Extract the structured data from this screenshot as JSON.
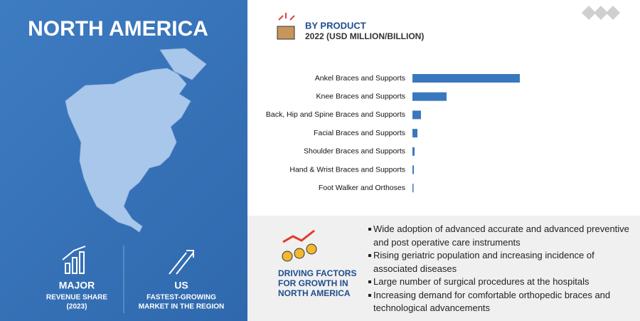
{
  "region": "NORTH AMERICA",
  "chart_data": {
    "type": "bar",
    "orientation": "horizontal",
    "title": "BY PRODUCT",
    "subtitle": "2022 (USD MILLION/BILLION)",
    "categories": [
      "Ankel Braces and Supports",
      "Knee Braces and Supports",
      "Back, Hip and Spine Braces and Supports",
      "Facial Braces and Supports",
      "Shoulder Braces and Supports",
      "Hand & Wrist Braces and Supports",
      "Foot Walker and Orthoses"
    ],
    "values": [
      151,
      48,
      12,
      7,
      3,
      2,
      1.5
    ],
    "color": "#3a78bd"
  },
  "stats": [
    {
      "value": "MAJOR",
      "label": [
        "REVENUE SHARE",
        "(2023)"
      ]
    },
    {
      "value": "US",
      "label": [
        "FASTEST-GROWING",
        "MARKET IN THE REGION"
      ]
    }
  ],
  "drivers": {
    "title": [
      "DRIVING FACTORS",
      "FOR GROWTH IN",
      "NORTH AMERICA"
    ],
    "items": [
      "Wide adoption of advanced accurate and advanced preventive and post operative care instruments",
      "Rising geriatric population and increasing incidence of associated diseases",
      "Large number of surgical procedures at the hospitals",
      "Increasing demand for comfortable orthopedic braces and technological advancements"
    ]
  }
}
